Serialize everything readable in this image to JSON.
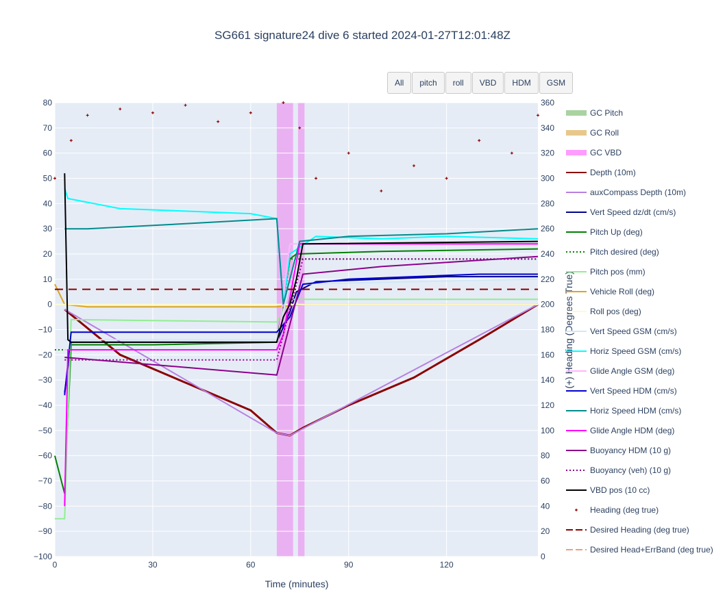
{
  "buttons": [
    "All",
    "pitch",
    "roll",
    "VBD",
    "HDM",
    "GSM"
  ],
  "chart_data": {
    "type": "line",
    "title": "SG661 signature24 dive 6 started 2024-01-27T12:01:48Z",
    "xlabel": "Time (minutes)",
    "ylabel_left": "",
    "ylabel_right": "(+) Heading (Degrees True)",
    "xlim": [
      0,
      148
    ],
    "ylim_left": [
      -100,
      80
    ],
    "ylim_right": [
      0,
      360
    ],
    "x_ticks": [
      0,
      30,
      60,
      90,
      120
    ],
    "y_ticks_left": [
      80,
      70,
      60,
      50,
      40,
      30,
      20,
      10,
      0,
      -10,
      -20,
      -30,
      -40,
      -50,
      -60,
      -70,
      -80,
      -90,
      -100
    ],
    "y_ticks_right": [
      360,
      340,
      320,
      300,
      280,
      260,
      240,
      220,
      200,
      180,
      160,
      140,
      120,
      100,
      80,
      60,
      40,
      20,
      0
    ],
    "grid": true,
    "legend_position": "right",
    "colors": {
      "plot_bg": "#e5ecf6",
      "depth": "#8b0000",
      "vbd_band": "#ee82ee"
    },
    "vbd_band": [
      [
        68,
        73
      ],
      [
        74.5,
        76.5
      ]
    ],
    "series": [
      {
        "name": "GC Pitch",
        "color": "#a9d3a0",
        "style": "band",
        "values": []
      },
      {
        "name": "GC Roll",
        "color": "#e8c88a",
        "style": "band",
        "values": []
      },
      {
        "name": "GC VBD",
        "color": "#ff9cff",
        "style": "band",
        "values": []
      },
      {
        "name": "Depth (10m)",
        "color": "#8b0000",
        "style": "solid",
        "axis": "left",
        "x": [
          3,
          20,
          40,
          60,
          68,
          72,
          76,
          90,
          110,
          130,
          148
        ],
        "y": [
          -2,
          -20,
          -31,
          -42,
          -51,
          -52,
          -49,
          -40,
          -29,
          -14,
          0
        ]
      },
      {
        "name": "auxCompass Depth (10m)",
        "color": "#b77fe0",
        "style": "solid",
        "axis": "left",
        "x": [
          3,
          68,
          72,
          148
        ],
        "y": [
          -2,
          -51,
          -52,
          0
        ]
      },
      {
        "name": "Vert Speed dz/dt (cm/s)",
        "color": "#00008b",
        "style": "solid",
        "axis": "left",
        "x": [
          3,
          5,
          30,
          68,
          72,
          74,
          80,
          100,
          120,
          148
        ],
        "y": [
          -35,
          -15,
          -15,
          -15,
          -3,
          5,
          9,
          10,
          11,
          11
        ]
      },
      {
        "name": "Pitch Up (deg)",
        "color": "#008000",
        "style": "solid",
        "axis": "left",
        "x": [
          0,
          3,
          5,
          30,
          68,
          72,
          74,
          100,
          148
        ],
        "y": [
          -60,
          -75,
          -16,
          -16,
          -15,
          18,
          20,
          21,
          22
        ]
      },
      {
        "name": "Pitch desired (deg)",
        "color": "#008000",
        "style": "dotted",
        "axis": "left",
        "x": [
          0,
          68,
          72,
          148
        ],
        "y": [
          -18,
          -18,
          18,
          18
        ]
      },
      {
        "name": "Pitch pos (mm)",
        "color": "#90ee90",
        "style": "solid",
        "axis": "left",
        "x": [
          0,
          3,
          5,
          68,
          72,
          148
        ],
        "y": [
          -85,
          -85,
          -6,
          -7,
          2,
          2
        ]
      },
      {
        "name": "Vehicle Roll (deg)",
        "color": "#daa520",
        "style": "solid",
        "axis": "left",
        "x": [
          0,
          3,
          10,
          68,
          76,
          148
        ],
        "y": [
          8,
          0,
          -1,
          -1,
          0,
          0
        ]
      },
      {
        "name": "Roll pos (deg)",
        "color": "#fffacd",
        "style": "solid",
        "axis": "left",
        "x": [
          0,
          148
        ],
        "y": [
          0,
          0
        ]
      },
      {
        "name": "Vert Speed GSM (cm/s)",
        "color": "#d0e8f8",
        "style": "solid",
        "axis": "left",
        "x": [
          3,
          68,
          72,
          148
        ],
        "y": [
          -14,
          -14,
          8,
          10
        ]
      },
      {
        "name": "Horiz Speed GSM (cm/s)",
        "color": "#00ffff",
        "style": "solid",
        "axis": "left",
        "x": [
          3,
          4,
          20,
          40,
          60,
          68,
          70,
          72,
          80,
          100,
          120,
          148
        ],
        "y": [
          46,
          42,
          38,
          37,
          36,
          34,
          0,
          20,
          27,
          26,
          27,
          26
        ]
      },
      {
        "name": "Glide Angle GSM (deg)",
        "color": "#ffb6ff",
        "style": "solid",
        "axis": "left",
        "x": [
          3,
          68,
          72,
          148
        ],
        "y": [
          -18,
          -18,
          24,
          24
        ]
      },
      {
        "name": "Vert Speed HDM (cm/s)",
        "color": "#0000cd",
        "style": "solid",
        "axis": "left",
        "x": [
          3,
          5,
          68,
          72,
          76,
          90,
          110,
          130,
          148
        ],
        "y": [
          -36,
          -11,
          -11,
          -5,
          8,
          10,
          11,
          12,
          12
        ]
      },
      {
        "name": "Horiz Speed HDM (cm/s)",
        "color": "#008b8b",
        "style": "solid",
        "axis": "left",
        "x": [
          3,
          10,
          40,
          68,
          70,
          75,
          90,
          120,
          148
        ],
        "y": [
          30,
          30,
          32,
          34,
          0,
          25,
          27,
          28,
          30
        ]
      },
      {
        "name": "Glide Angle HDM (deg)",
        "color": "#ff00ff",
        "style": "solid",
        "axis": "left",
        "x": [
          3,
          4,
          68,
          70,
          75,
          90,
          120,
          148
        ],
        "y": [
          -80,
          -18,
          -18,
          -12,
          24,
          24,
          24,
          24
        ]
      },
      {
        "name": "Buoyancy HDM (10 g)",
        "color": "#8b008b",
        "style": "solid",
        "axis": "left",
        "x": [
          3,
          68,
          76,
          100,
          148
        ],
        "y": [
          -21,
          -28,
          12,
          15,
          19
        ]
      },
      {
        "name": "Buoyancy (veh) (10 g)",
        "color": "#8b008b",
        "style": "dotted",
        "axis": "left",
        "x": [
          3,
          68,
          76,
          148
        ],
        "y": [
          -22,
          -22,
          18,
          18
        ]
      },
      {
        "name": "VBD pos (10 cc)",
        "color": "#000000",
        "style": "solid",
        "axis": "left",
        "x": [
          3,
          4,
          5,
          68,
          70,
          72,
          74,
          76,
          148
        ],
        "y": [
          52,
          -14,
          -15,
          -15,
          -5,
          0,
          10,
          24,
          25
        ]
      },
      {
        "name": "Heading (deg true)",
        "color": "#8b0000",
        "style": "markers",
        "axis": "right",
        "x": [
          0,
          5,
          10,
          20,
          30,
          40,
          50,
          60,
          70,
          75,
          80,
          90,
          100,
          110,
          120,
          130,
          140,
          148
        ],
        "y": [
          300,
          330,
          350,
          355,
          352,
          358,
          345,
          352,
          360,
          340,
          300,
          320,
          290,
          310,
          300,
          330,
          320,
          350
        ]
      },
      {
        "name": "Desired Heading (deg true)",
        "color": "#8b0000",
        "style": "dashed",
        "axis": "right",
        "x": [
          0,
          148
        ],
        "y": [
          212,
          212
        ]
      },
      {
        "name": "Desired Head+ErrBand (deg true)",
        "color": "#e9a07d",
        "style": "dashed",
        "axis": "right",
        "x": [],
        "y": []
      }
    ]
  }
}
